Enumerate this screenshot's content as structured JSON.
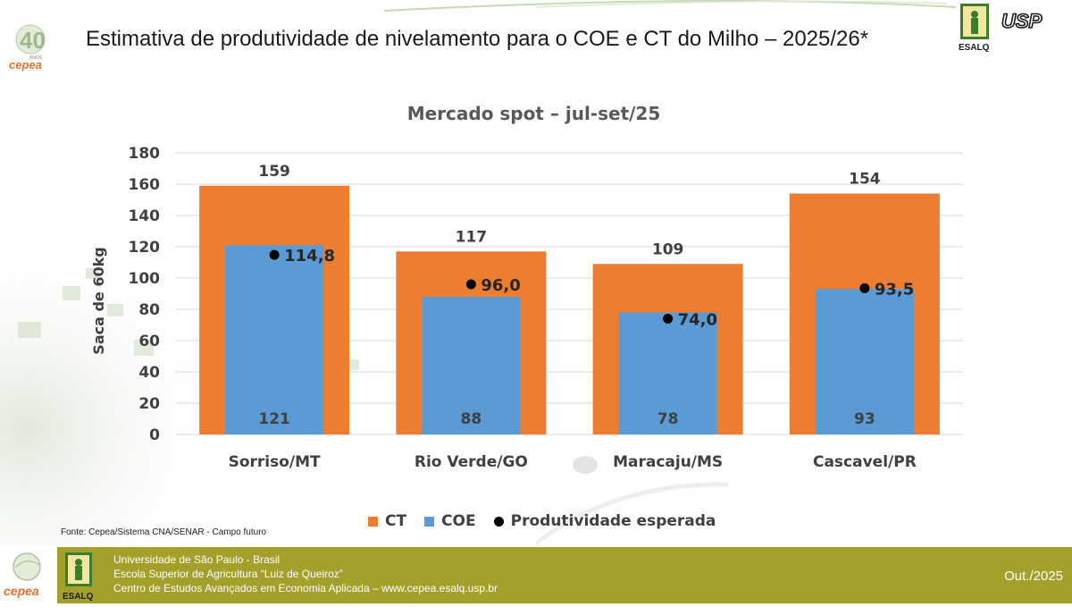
{
  "header": {
    "title": "Estimativa de produtividade de nivelamento para o COE e CT do Milho – 2025/26*",
    "cepea_logo_text": "cepea",
    "cepea_anniversary": "40",
    "cepea_anniversary_sub": "ANOS",
    "esalq_logo_text": "ESALQ",
    "usp_logo_text": "USP"
  },
  "chart_data": {
    "type": "bar",
    "title": "Mercado spot – jul-set/25",
    "ylabel": "Saca de 60kg",
    "xlabel": "",
    "ylim": [
      0,
      180
    ],
    "yticks": [
      0,
      20,
      40,
      60,
      80,
      100,
      120,
      140,
      160,
      180
    ],
    "grid": true,
    "categories": [
      "Sorriso/MT",
      "Rio Verde/GO",
      "Maracaju/MS",
      "Cascavel/PR"
    ],
    "series": [
      {
        "name": "CT",
        "color": "#ed7d31",
        "values": [
          159,
          117,
          109,
          154
        ],
        "labels": [
          "159",
          "117",
          "109",
          "154"
        ]
      },
      {
        "name": "COE",
        "color": "#5b9bd5",
        "values": [
          121,
          88,
          78,
          93
        ],
        "labels": [
          "121",
          "88",
          "78",
          "93"
        ]
      },
      {
        "name": "Produtividade esperada",
        "color": "#000000",
        "values": [
          114.8,
          96.0,
          74.0,
          93.5
        ],
        "labels": [
          "114,8",
          "96,0",
          "74,0",
          "93,5"
        ]
      }
    ],
    "legend_position": "bottom"
  },
  "source": "Fonte: Cepea/Sistema CNA/SENAR - Campo futuro",
  "footer": {
    "line1": "Universidade de São Paulo - Brasil",
    "line2": "Escola Superior de Agricultura “Luiz de Queiroz”",
    "line3": "Centro de Estudos Avançados em Economia Aplicada – www.cepea.esalq.usp.br",
    "date": "Out./2025"
  }
}
